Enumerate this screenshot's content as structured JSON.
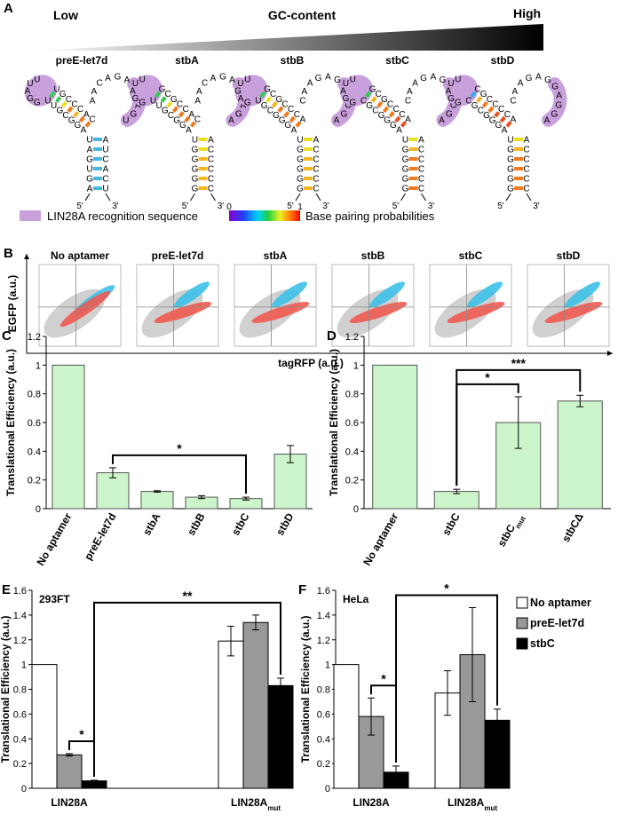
{
  "panel_a": {
    "panel": "A",
    "low": "Low",
    "gc_content": "GC-content",
    "high": "High",
    "five_prime": "5'",
    "three_prime": "3'",
    "structures": [
      {
        "name": "preE-let7d",
        "sequence": "AGUGAUAGGCGUUGGAUUUGCCCACAACAGAGGAGUAUCACU",
        "pair_colors": [
          "#44b7e6",
          "#44b7e6",
          "#44b7e6",
          "#44b7e6",
          "#44b7e6",
          "#44b7e6",
          "#f07a1e",
          "#f07a1e",
          "#f5b520",
          "#f07a1e",
          "#e8e020",
          "#33cc55",
          "#33cc55"
        ]
      },
      {
        "name": "stbA",
        "sequence": "GGGGGUAGGCGUUGGAUUGCGCCACAACAGAGGAGAACCCCC",
        "pair_colors": [
          "#f5b520",
          "#f5b520",
          "#f5b520",
          "#f5b520",
          "#e8e020",
          "#e8e020",
          "#f07a1e",
          "#f07a1e",
          "#f07a1e",
          "#f07a1e",
          "#e8e020",
          "#33cc55",
          "#33cc55"
        ]
      },
      {
        "name": "stbB",
        "sequence": "GGGGGUAGGGCGUGAGUUGCGCCCACAAGAGGAGGAACCCCC",
        "pair_colors": [
          "#f5b520",
          "#f5b520",
          "#f5b520",
          "#f5b520",
          "#e8e020",
          "#e8e020",
          "#f07a1e",
          "#f07a1e",
          "#f07a1e",
          "#f07a1e",
          "#f5b520",
          "#e8e020",
          "#33cc55"
        ]
      },
      {
        "name": "stbC",
        "sequence": "GGGGGUAGGGCGCGGAUUGCGCCCACAAGAGGAGGAACCCCC",
        "pair_colors": [
          "#f07a1e",
          "#f07a1e",
          "#f07a1e",
          "#f07a1e",
          "#f5b520",
          "#e8e020",
          "#e8501e",
          "#e8501e",
          "#f07a1e",
          "#f07a1e",
          "#f07a1e",
          "#f5b520",
          "#33cc55"
        ]
      },
      {
        "name": "stbD",
        "sequence": "GGGGGUAGGGCGCGGAUUCGCCCCACAAGAGGAGGAACCCCC",
        "pair_colors": [
          "#f07a1e",
          "#f07a1e",
          "#f07a1e",
          "#f07a1e",
          "#f5b520",
          "#e8e020",
          "#e8501e",
          "#e8501e",
          "#e8501e",
          "#f07a1e",
          "#f07a1e",
          "#f5b520",
          "#33aaee"
        ]
      }
    ],
    "legend_recognition": "LIN28A recognition sequence",
    "scale_min": "0",
    "scale_max": "1",
    "legend_pairing": "Base pairing probabilities"
  },
  "panel_b": {
    "panel": "B",
    "titles": [
      "No aptamer",
      "preE-let7d",
      "stbA",
      "stbB",
      "stbC",
      "stbD"
    ],
    "ylabel": "EGFP (a.u.)",
    "xlabel": "tagRFP (a.u.)"
  },
  "chart_data": [
    {
      "type": "bar",
      "panel": "C",
      "ylabel": "Translational Efficiency (a.u.)",
      "categories": [
        "No aptamer",
        "preE-let7d",
        "stbA",
        "stbB",
        "stbC",
        "stbD"
      ],
      "category_subscripts": [
        null,
        null,
        null,
        null,
        null,
        null
      ],
      "values": [
        1,
        0.25,
        0.12,
        0.08,
        0.07,
        0.38
      ],
      "errors": [
        0,
        0.035,
        0.005,
        0.01,
        0.01,
        0.06
      ],
      "color": "#ccf5cc",
      "ylim": [
        0,
        1.2
      ],
      "yticks": [
        0,
        0.2,
        0.4,
        0.6,
        0.8,
        1,
        1.2
      ],
      "brackets": [
        {
          "from": 1,
          "to": 4,
          "text": "*"
        }
      ]
    },
    {
      "type": "bar",
      "panel": "D",
      "ylabel": "Translational Efficiency (a.u.)",
      "categories": [
        "No aptamer",
        "stbC",
        "stbC",
        "stbCΔ"
      ],
      "category_subscripts": [
        null,
        null,
        "mut",
        null
      ],
      "values": [
        1,
        0.12,
        0.6,
        0.75
      ],
      "errors": [
        0,
        0.015,
        0.18,
        0.04
      ],
      "color": "#ccf5cc",
      "ylim": [
        0,
        1.2
      ],
      "yticks": [
        0,
        0.2,
        0.4,
        0.6,
        0.8,
        1,
        1.2
      ],
      "brackets": [
        {
          "from": 1,
          "to": 2,
          "text": "*"
        },
        {
          "from": 1,
          "to": 3,
          "text": "***"
        }
      ]
    },
    {
      "type": "grouped_bar",
      "panel": "E",
      "inset": "293FT",
      "ylabel": "Translational Efficiency (a.u.)",
      "categories": [
        "LIN28A",
        "LIN28A"
      ],
      "category_subscripts": [
        null,
        "mut"
      ],
      "series": [
        {
          "name": "No aptamer",
          "color": "#ffffff",
          "values": [
            1,
            1.19
          ],
          "errors": [
            0,
            0.12
          ]
        },
        {
          "name": "preE-let7d",
          "color": "#999999",
          "values": [
            0.27,
            1.34
          ],
          "errors": [
            0.01,
            0.06
          ]
        },
        {
          "name": "stbC",
          "color": "#000000",
          "values": [
            0.06,
            0.83
          ],
          "errors": [
            0.005,
            0.06
          ]
        }
      ],
      "ylim": [
        0,
        1.6
      ],
      "yticks": [
        0,
        0.2,
        0.4,
        0.6,
        0.8,
        1,
        1.2,
        1.4,
        1.6
      ],
      "brackets": [
        {
          "from": [
            0,
            1
          ],
          "to": [
            0,
            2
          ],
          "text": "*"
        },
        {
          "from": [
            0,
            2
          ],
          "to": [
            1,
            2
          ],
          "text": "**"
        }
      ]
    },
    {
      "type": "grouped_bar",
      "panel": "F",
      "inset": "HeLa",
      "ylabel": "Translational Efficiency (a.u.)",
      "categories": [
        "LIN28A",
        "LIN28A"
      ],
      "category_subscripts": [
        null,
        "mut"
      ],
      "series": [
        {
          "name": "No aptamer",
          "color": "#ffffff",
          "values": [
            1,
            0.77
          ],
          "errors": [
            0,
            0.18
          ]
        },
        {
          "name": "preE-let7d",
          "color": "#999999",
          "values": [
            0.58,
            1.08
          ],
          "errors": [
            0.15,
            0.38
          ]
        },
        {
          "name": "stbC",
          "color": "#000000",
          "values": [
            0.13,
            0.55
          ],
          "errors": [
            0.05,
            0.09
          ]
        }
      ],
      "ylim": [
        0,
        1.6
      ],
      "yticks": [
        0,
        0.2,
        0.4,
        0.6,
        0.8,
        1,
        1.2,
        1.4,
        1.6
      ],
      "legend": "right",
      "brackets": [
        {
          "from": [
            0,
            1
          ],
          "to": [
            0,
            2
          ],
          "text": "*"
        },
        {
          "from": [
            0,
            2
          ],
          "to": [
            1,
            2
          ],
          "text": "*"
        }
      ]
    }
  ]
}
